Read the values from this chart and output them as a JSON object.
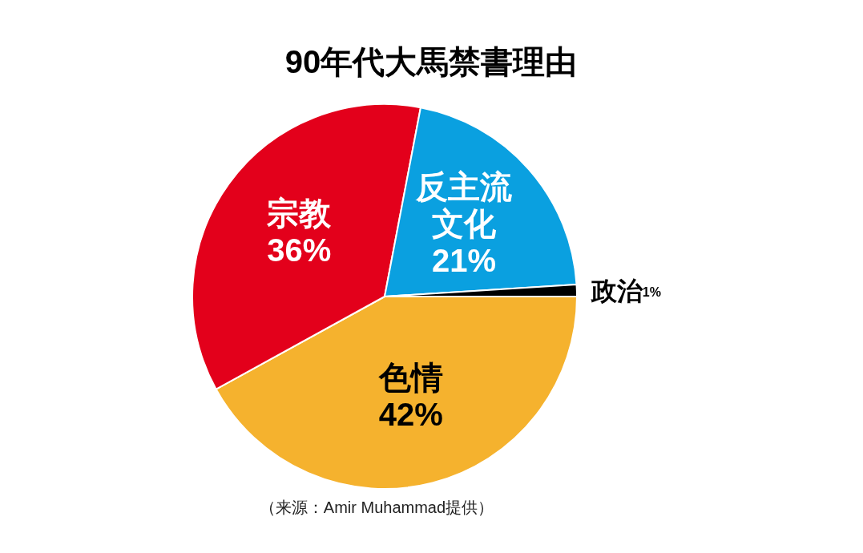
{
  "chart_data": {
    "type": "pie",
    "title": "90年代大馬禁書理由",
    "categories": [
      "色情",
      "宗教",
      "反主流文化",
      "政治"
    ],
    "values": [
      42,
      36,
      21,
      1
    ],
    "colors": [
      "#f5b22e",
      "#e3001b",
      "#0aa0e0",
      "#000000"
    ],
    "value_labels": [
      "42%",
      "36%",
      "21%",
      "1%"
    ],
    "annotations": [
      "（来源：Amir Muhammad提供）"
    ]
  }
}
